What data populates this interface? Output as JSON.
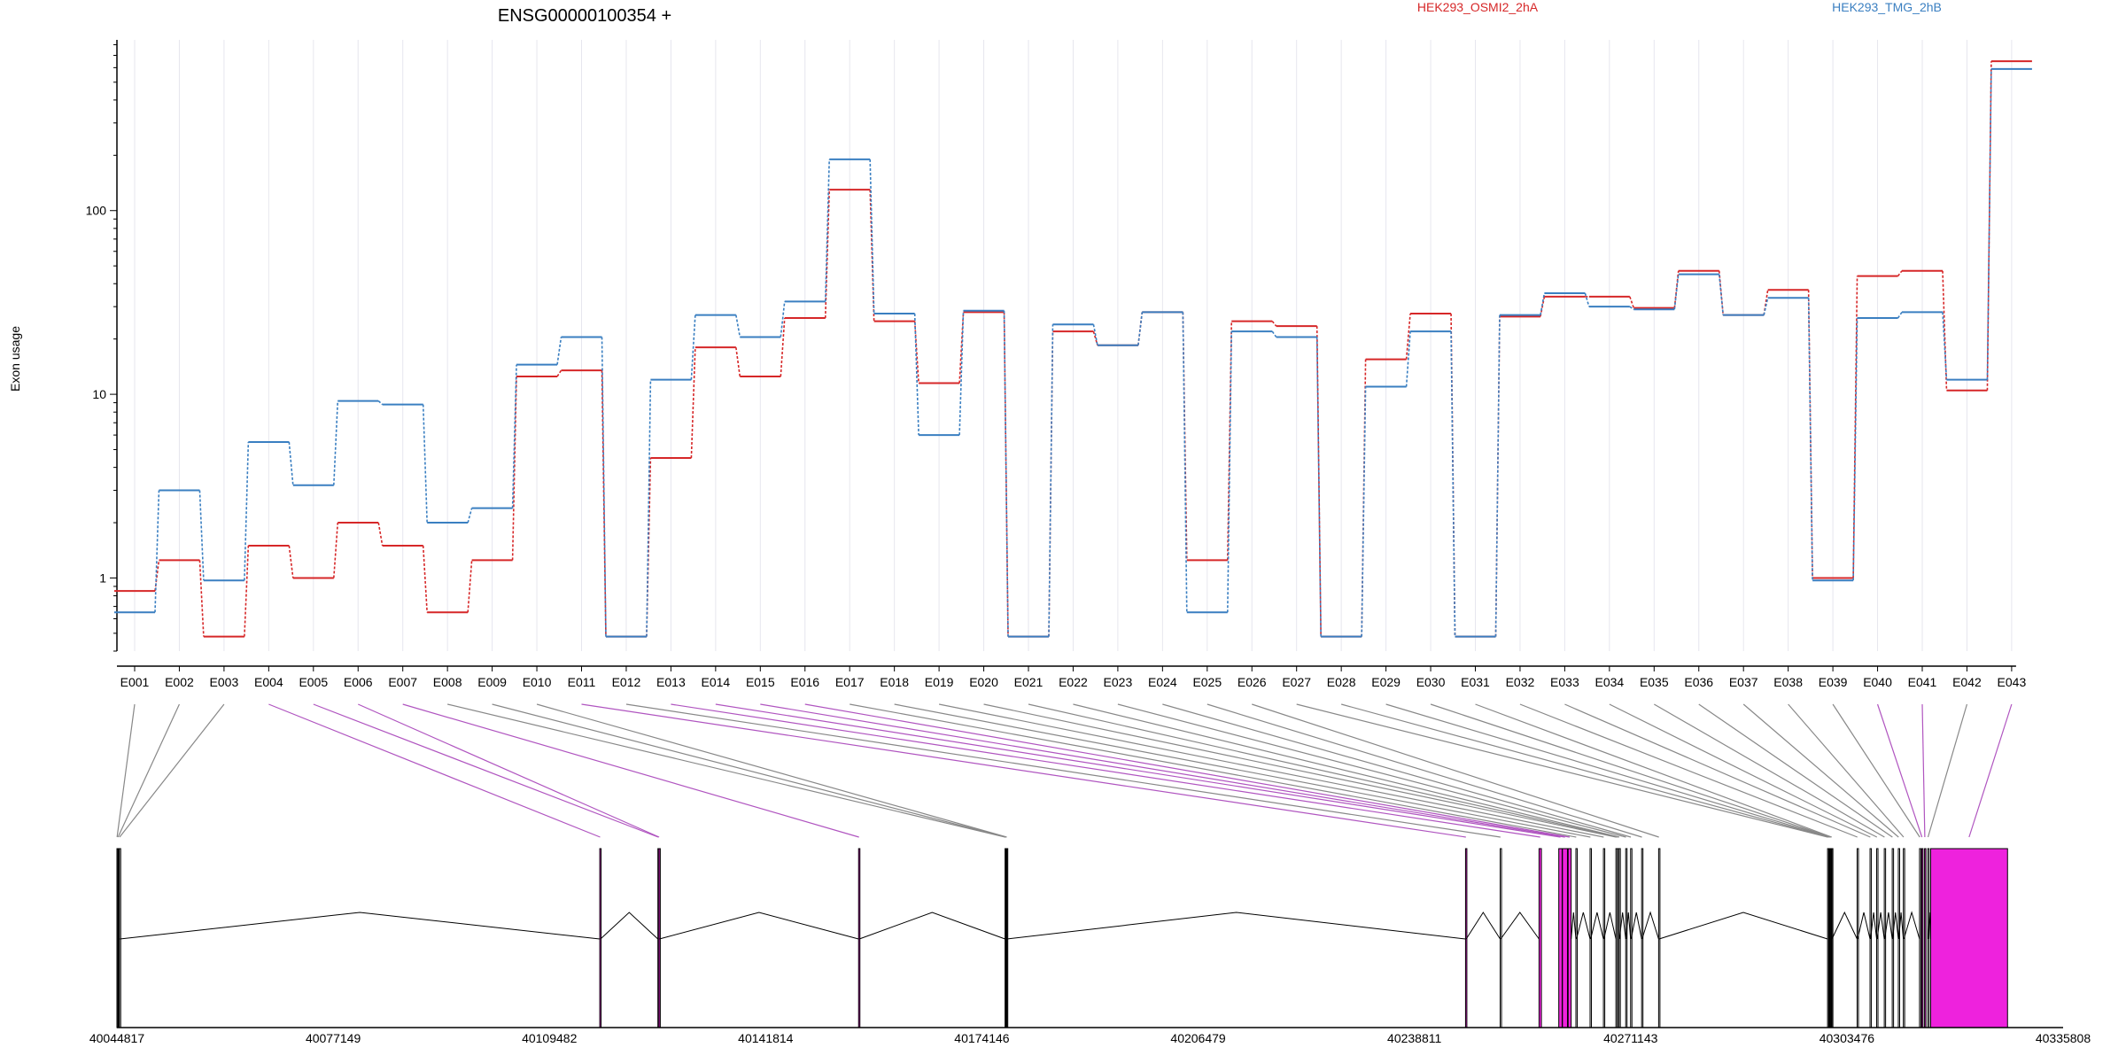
{
  "title": "ENSG00000100354 +",
  "colors": {
    "s1": "#d62728",
    "s2": "#3a7fc1",
    "exon_highlight": "#ee22dd",
    "connector_sig": "#b055c0",
    "axis": "#000000",
    "grid": "#e6e6ee"
  },
  "chart_data": {
    "type": "line",
    "title": "ENSG00000100354 +",
    "ylabel": "Exon usage",
    "yscale": "log",
    "ylim": [
      0.4,
      850
    ],
    "yticks": [
      1,
      10,
      100
    ],
    "ytick_labels": [
      "1",
      "10",
      "100"
    ],
    "grid": "vertical",
    "legend_placement": "top",
    "categories": [
      "E001",
      "E002",
      "E003",
      "E004",
      "E005",
      "E006",
      "E007",
      "E008",
      "E009",
      "E010",
      "E011",
      "E012",
      "E013",
      "E014",
      "E015",
      "E016",
      "E017",
      "E018",
      "E019",
      "E020",
      "E021",
      "E022",
      "E023",
      "E024",
      "E025",
      "E026",
      "E027",
      "E028",
      "E029",
      "E030",
      "E031",
      "E032",
      "E033",
      "E034",
      "E035",
      "E036",
      "E037",
      "E038",
      "E039",
      "E040",
      "E041",
      "E042",
      "E043"
    ],
    "series": [
      {
        "name": "HEK293_OSMI2_2hA",
        "color": "#d62728",
        "values": [
          0.85,
          1.25,
          0.48,
          1.5,
          1.0,
          2.0,
          1.5,
          0.65,
          1.25,
          12.5,
          13.5,
          0.48,
          4.5,
          18,
          12.5,
          26,
          130,
          25,
          11.5,
          28,
          0.48,
          22,
          18.5,
          28,
          1.25,
          25,
          23.5,
          0.48,
          15.5,
          27.5,
          0.48,
          26.5,
          34,
          34,
          29.5,
          47,
          27,
          37,
          1.0,
          44,
          47,
          10.5,
          650
        ]
      },
      {
        "name": "HEK293_TMG_2hB",
        "color": "#3a7fc1",
        "values": [
          0.65,
          3.0,
          0.97,
          5.5,
          3.2,
          9.2,
          8.8,
          2.0,
          2.4,
          14.5,
          20.5,
          0.48,
          12,
          27,
          20.5,
          32,
          190,
          27.5,
          6,
          28.5,
          0.48,
          24,
          18.5,
          28,
          0.65,
          22,
          20.5,
          0.48,
          11,
          22,
          0.48,
          27,
          35.5,
          30,
          29,
          45,
          27,
          33.5,
          0.97,
          26,
          28,
          12,
          590
        ]
      }
    ],
    "gene_model": {
      "coord_ticks": [
        40044817,
        40077149,
        40109482,
        40141814,
        40174146,
        40206479,
        40238811,
        40271143,
        40303476,
        40335808
      ],
      "exons": [
        {
          "id": "E001",
          "start": 40044817,
          "end": 40044860,
          "sig": false
        },
        {
          "id": "E002",
          "start": 40044960,
          "end": 40045010,
          "sig": false
        },
        {
          "id": "E003",
          "start": 40045180,
          "end": 40045260,
          "sig": false
        },
        {
          "id": "E004",
          "start": 40117010,
          "end": 40117120,
          "sig": true
        },
        {
          "id": "E005",
          "start": 40125700,
          "end": 40125790,
          "sig": true
        },
        {
          "id": "E006",
          "start": 40125860,
          "end": 40125920,
          "sig": true
        },
        {
          "id": "E007",
          "start": 40155710,
          "end": 40155820,
          "sig": true
        },
        {
          "id": "E008",
          "start": 40177610,
          "end": 40177660,
          "sig": false
        },
        {
          "id": "E009",
          "start": 40177700,
          "end": 40177760,
          "sig": false
        },
        {
          "id": "E010",
          "start": 40177820,
          "end": 40177900,
          "sig": false
        },
        {
          "id": "E011",
          "start": 40246460,
          "end": 40246560,
          "sig": true
        },
        {
          "id": "E012",
          "start": 40251640,
          "end": 40251720,
          "sig": false
        },
        {
          "id": "E013",
          "start": 40257450,
          "end": 40257800,
          "sig": true
        },
        {
          "id": "E014",
          "start": 40260400,
          "end": 40260900,
          "sig": true
        },
        {
          "id": "E015",
          "start": 40260950,
          "end": 40261700,
          "sig": true
        },
        {
          "id": "E016",
          "start": 40261800,
          "end": 40262250,
          "sig": true
        },
        {
          "id": "E017",
          "start": 40262960,
          "end": 40263050,
          "sig": false
        },
        {
          "id": "E018",
          "start": 40265080,
          "end": 40265170,
          "sig": false
        },
        {
          "id": "E019",
          "start": 40267080,
          "end": 40267150,
          "sig": false
        },
        {
          "id": "E020",
          "start": 40268940,
          "end": 40269030,
          "sig": false
        },
        {
          "id": "E021",
          "start": 40269170,
          "end": 40269240,
          "sig": false
        },
        {
          "id": "E022",
          "start": 40269410,
          "end": 40269470,
          "sig": false
        },
        {
          "id": "E023",
          "start": 40270410,
          "end": 40270480,
          "sig": false
        },
        {
          "id": "E024",
          "start": 40271140,
          "end": 40271210,
          "sig": false
        },
        {
          "id": "E025",
          "start": 40272790,
          "end": 40272860,
          "sig": false
        },
        {
          "id": "E026",
          "start": 40275330,
          "end": 40275400,
          "sig": false
        },
        {
          "id": "E027",
          "start": 40300590,
          "end": 40300650,
          "sig": false
        },
        {
          "id": "E028",
          "start": 40300750,
          "end": 40300810,
          "sig": false
        },
        {
          "id": "E029",
          "start": 40300910,
          "end": 40300970,
          "sig": false
        },
        {
          "id": "E030",
          "start": 40301050,
          "end": 40301110,
          "sig": false
        },
        {
          "id": "E031",
          "start": 40301190,
          "end": 40301250,
          "sig": false
        },
        {
          "id": "E032",
          "start": 40305010,
          "end": 40305080,
          "sig": false
        },
        {
          "id": "E033",
          "start": 40306940,
          "end": 40307020,
          "sig": false
        },
        {
          "id": "E034",
          "start": 40307930,
          "end": 40308000,
          "sig": false
        },
        {
          "id": "E035",
          "start": 40309070,
          "end": 40309140,
          "sig": false
        },
        {
          "id": "E036",
          "start": 40310260,
          "end": 40310320,
          "sig": false
        },
        {
          "id": "E037",
          "start": 40311170,
          "end": 40311240,
          "sig": false
        },
        {
          "id": "E038",
          "start": 40311920,
          "end": 40312000,
          "sig": false
        },
        {
          "id": "E039",
          "start": 40314340,
          "end": 40314410,
          "sig": false
        },
        {
          "id": "E040",
          "start": 40314660,
          "end": 40314740,
          "sig": true
        },
        {
          "id": "E041",
          "start": 40315090,
          "end": 40315170,
          "sig": true
        },
        {
          "id": "E042",
          "start": 40315570,
          "end": 40315650,
          "sig": false
        },
        {
          "id": "E043",
          "start": 40316000,
          "end": 40327500,
          "sig": true
        }
      ],
      "introns": [
        {
          "from": 40045260,
          "to": 40117010
        },
        {
          "from": 40117120,
          "to": 40125700
        },
        {
          "from": 40125920,
          "to": 40155710
        },
        {
          "from": 40155820,
          "to": 40177610
        },
        {
          "from": 40177900,
          "to": 40246460
        },
        {
          "from": 40246560,
          "to": 40251640
        },
        {
          "from": 40251720,
          "to": 40257450
        },
        {
          "from": 40262250,
          "to": 40262960
        },
        {
          "from": 40263050,
          "to": 40265080
        },
        {
          "from": 40265170,
          "to": 40267080
        },
        {
          "from": 40267150,
          "to": 40268940
        },
        {
          "from": 40269470,
          "to": 40270410
        },
        {
          "from": 40270480,
          "to": 40271140
        },
        {
          "from": 40271210,
          "to": 40272790
        },
        {
          "from": 40272860,
          "to": 40275330
        },
        {
          "from": 40275400,
          "to": 40300590
        },
        {
          "from": 40301250,
          "to": 40305010
        },
        {
          "from": 40305080,
          "to": 40306940
        },
        {
          "from": 40307020,
          "to": 40307930
        },
        {
          "from": 40308000,
          "to": 40309070
        },
        {
          "from": 40309140,
          "to": 40310260
        },
        {
          "from": 40310320,
          "to": 40311170
        },
        {
          "from": 40311240,
          "to": 40311920
        },
        {
          "from": 40312000,
          "to": 40314340
        },
        {
          "from": 40315650,
          "to": 40316000
        }
      ]
    }
  }
}
